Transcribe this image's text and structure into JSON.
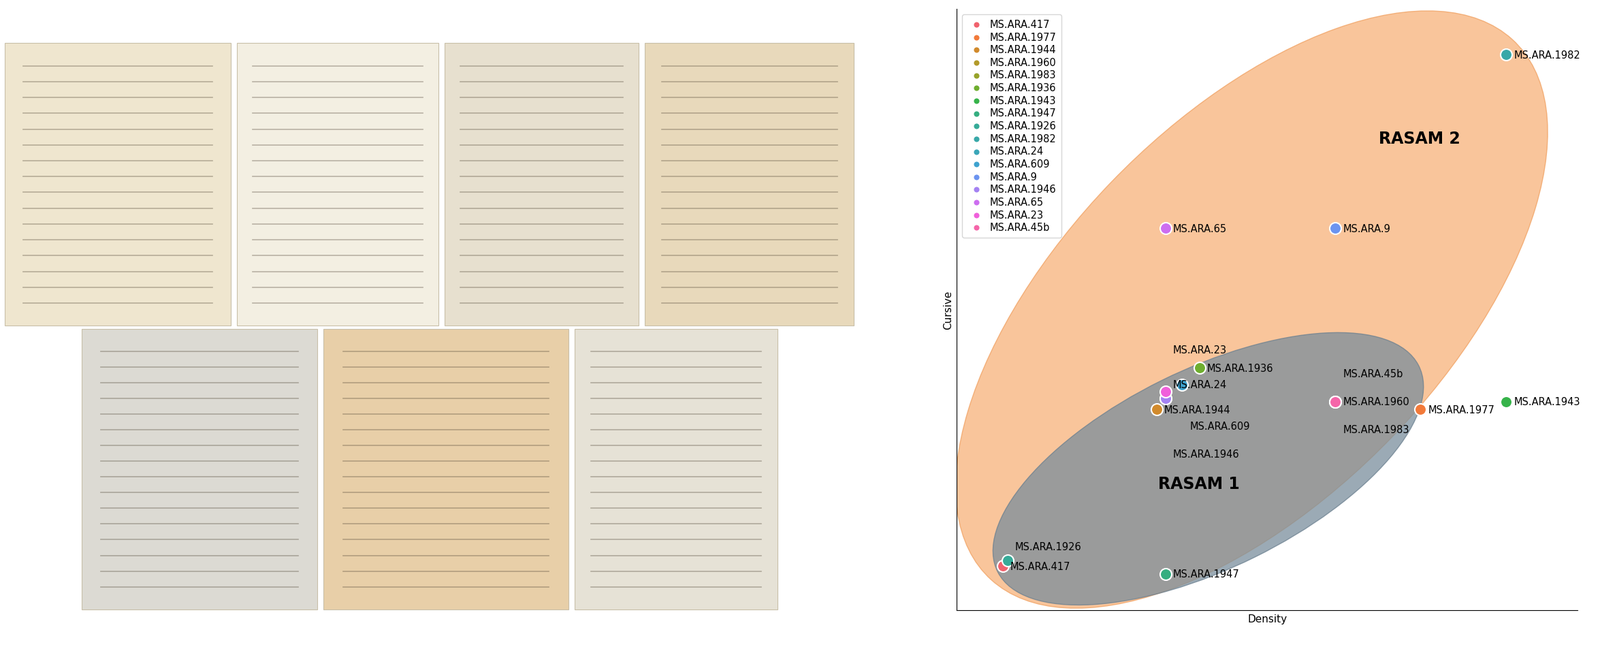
{
  "chart_data": {
    "type": "scatter",
    "xlabel": "Density",
    "ylabel": "Cursive",
    "xlim": [
      0,
      100
    ],
    "ylim": [
      0,
      100
    ],
    "tick_labels": false,
    "legend": "upper left",
    "data_labels": true,
    "series": [
      {
        "name": "MS.ARA.417",
        "color": "#f0626d",
        "x": 7.4,
        "y": 7.3
      },
      {
        "name": "MS.ARA.1977",
        "color": "#f27a3a",
        "x": 74.7,
        "y": 33.4
      },
      {
        "name": "MS.ARA.1944",
        "color": "#d18a2c",
        "x": 32.2,
        "y": 33.4
      },
      {
        "name": "MS.ARA.1960",
        "color": "#b29a2a",
        "x": 61.0,
        "y": 34.7
      },
      {
        "name": "MS.ARA.1983",
        "color": "#97a32a",
        "x": 61.0,
        "y": 34.7
      },
      {
        "name": "MS.ARA.1936",
        "color": "#6fae2f",
        "x": 39.1,
        "y": 40.3
      },
      {
        "name": "MS.ARA.1943",
        "color": "#36b34a",
        "x": 88.5,
        "y": 34.7
      },
      {
        "name": "MS.ARA.1947",
        "color": "#35ae80",
        "x": 33.6,
        "y": 6.0
      },
      {
        "name": "MS.ARA.1926",
        "color": "#36ab98",
        "x": 8.2,
        "y": 8.3
      },
      {
        "name": "MS.ARA.1982",
        "color": "#38a8a8",
        "x": 88.5,
        "y": 92.4
      },
      {
        "name": "MS.ARA.24",
        "color": "#3aa6b8",
        "x": 33.6,
        "y": 35.2
      },
      {
        "name": "MS.ARA.609",
        "color": "#3ea2cf",
        "x": 36.3,
        "y": 37.5
      },
      {
        "name": "MS.ARA.9",
        "color": "#6c94f0",
        "x": 61.0,
        "y": 63.5
      },
      {
        "name": "MS.ARA.1946",
        "color": "#a482f2",
        "x": 33.6,
        "y": 35.2
      },
      {
        "name": "MS.ARA.65",
        "color": "#cd6ef0",
        "x": 33.6,
        "y": 63.5
      },
      {
        "name": "MS.ARA.23",
        "color": "#f060db",
        "x": 33.6,
        "y": 36.4
      },
      {
        "name": "MS.ARA.45b",
        "color": "#f565a9",
        "x": 61.0,
        "y": 34.7
      }
    ],
    "annotations": [
      {
        "text": "RASAM 1"
      },
      {
        "text": "RASAM 2"
      }
    ]
  }
}
